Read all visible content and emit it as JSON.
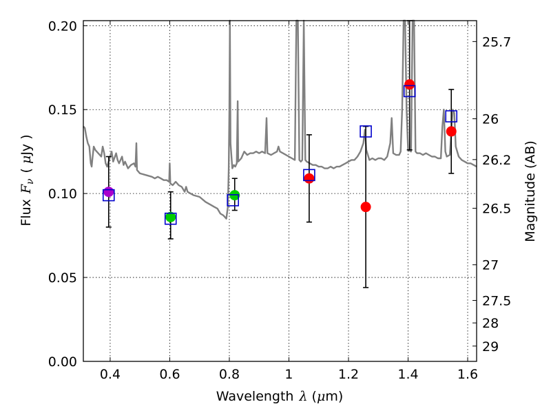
{
  "chart_data": {
    "type": "scatter",
    "title": "",
    "xlabel": "Wavelength",
    "xlabel_symbol": "λ",
    "xlabel_unit_prefix": "(",
    "xlabel_unit_mu": "μ",
    "xlabel_unit_suffix": "m)",
    "ylabel": "Flux",
    "ylabel_symbol": "F",
    "ylabel_sub": "ν",
    "ylabel_unit_prefix": "(",
    "ylabel_unit_mu": "μ",
    "ylabel_unit_suffix": "Jy )",
    "y2label": "Magnitude (AB)",
    "xlim": [
      0.31,
      1.63
    ],
    "ylim": [
      0.0,
      0.203
    ],
    "grid": true,
    "xticks": [
      {
        "v": 0.4,
        "label": "0.4"
      },
      {
        "v": 0.6,
        "label": "0.6"
      },
      {
        "v": 0.8,
        "label": "0.8"
      },
      {
        "v": 1.0,
        "label": "1"
      },
      {
        "v": 1.2,
        "label": "1.2"
      },
      {
        "v": 1.4,
        "label": "1.4"
      },
      {
        "v": 1.6,
        "label": "1.6"
      }
    ],
    "yticks": [
      {
        "v": 0.0,
        "label": "0.00"
      },
      {
        "v": 0.05,
        "label": "0.05"
      },
      {
        "v": 0.1,
        "label": "0.10"
      },
      {
        "v": 0.15,
        "label": "0.15"
      },
      {
        "v": 0.2,
        "label": "0.20"
      }
    ],
    "y2ticks": [
      {
        "mag": 25.7,
        "label": "25.7"
      },
      {
        "mag": 26,
        "label": "26"
      },
      {
        "mag": 26.2,
        "label": "26.2"
      },
      {
        "mag": 26.5,
        "label": "26.5"
      },
      {
        "mag": 27,
        "label": "27"
      },
      {
        "mag": 27.5,
        "label": "27.5"
      },
      {
        "mag": 28,
        "label": "28"
      },
      {
        "mag": 29,
        "label": "29"
      }
    ],
    "model_spectrum": {
      "name": "model",
      "color": "#808080",
      "points": [
        [
          0.31,
          0.14
        ],
        [
          0.315,
          0.139
        ],
        [
          0.32,
          0.134
        ],
        [
          0.325,
          0.13
        ],
        [
          0.33,
          0.128
        ],
        [
          0.335,
          0.118
        ],
        [
          0.338,
          0.116
        ],
        [
          0.34,
          0.12
        ],
        [
          0.345,
          0.128
        ],
        [
          0.35,
          0.126
        ],
        [
          0.36,
          0.124
        ],
        [
          0.37,
          0.122
        ],
        [
          0.375,
          0.128
        ],
        [
          0.38,
          0.124
        ],
        [
          0.385,
          0.118
        ],
        [
          0.39,
          0.116
        ],
        [
          0.4,
          0.122
        ],
        [
          0.405,
          0.125
        ],
        [
          0.41,
          0.119
        ],
        [
          0.42,
          0.124
        ],
        [
          0.425,
          0.12
        ],
        [
          0.43,
          0.118
        ],
        [
          0.44,
          0.122
        ],
        [
          0.445,
          0.117
        ],
        [
          0.45,
          0.119
        ],
        [
          0.46,
          0.115
        ],
        [
          0.47,
          0.117
        ],
        [
          0.48,
          0.118
        ],
        [
          0.485,
          0.116
        ],
        [
          0.488,
          0.13
        ],
        [
          0.49,
          0.114
        ],
        [
          0.5,
          0.112
        ],
        [
          0.52,
          0.111
        ],
        [
          0.54,
          0.11
        ],
        [
          0.55,
          0.109
        ],
        [
          0.56,
          0.11
        ],
        [
          0.57,
          0.109
        ],
        [
          0.58,
          0.108
        ],
        [
          0.59,
          0.108
        ],
        [
          0.598,
          0.107
        ],
        [
          0.6,
          0.118
        ],
        [
          0.602,
          0.106
        ],
        [
          0.61,
          0.105
        ],
        [
          0.62,
          0.107
        ],
        [
          0.625,
          0.106
        ],
        [
          0.63,
          0.105
        ],
        [
          0.64,
          0.104
        ],
        [
          0.65,
          0.101
        ],
        [
          0.655,
          0.104
        ],
        [
          0.66,
          0.101
        ],
        [
          0.67,
          0.1
        ],
        [
          0.68,
          0.099
        ],
        [
          0.7,
          0.098
        ],
        [
          0.72,
          0.095
        ],
        [
          0.74,
          0.093
        ],
        [
          0.75,
          0.092
        ],
        [
          0.76,
          0.091
        ],
        [
          0.77,
          0.088
        ],
        [
          0.78,
          0.087
        ],
        [
          0.785,
          0.086
        ],
        [
          0.79,
          0.085
        ],
        [
          0.795,
          0.092
        ],
        [
          0.798,
          0.115
        ],
        [
          0.8,
          0.15
        ],
        [
          0.802,
          0.203
        ],
        [
          0.804,
          0.13
        ],
        [
          0.81,
          0.115
        ],
        [
          0.815,
          0.117
        ],
        [
          0.82,
          0.116
        ],
        [
          0.825,
          0.118
        ],
        [
          0.828,
          0.155
        ],
        [
          0.83,
          0.119
        ],
        [
          0.84,
          0.121
        ],
        [
          0.85,
          0.125
        ],
        [
          0.86,
          0.123
        ],
        [
          0.87,
          0.124
        ],
        [
          0.88,
          0.124
        ],
        [
          0.89,
          0.125
        ],
        [
          0.9,
          0.124
        ],
        [
          0.91,
          0.125
        ],
        [
          0.92,
          0.124
        ],
        [
          0.925,
          0.145
        ],
        [
          0.928,
          0.124
        ],
        [
          0.94,
          0.123
        ],
        [
          0.95,
          0.124
        ],
        [
          0.96,
          0.125
        ],
        [
          0.965,
          0.128
        ],
        [
          0.97,
          0.125
        ],
        [
          0.98,
          0.124
        ],
        [
          0.99,
          0.123
        ],
        [
          1.0,
          0.122
        ],
        [
          1.01,
          0.121
        ],
        [
          1.02,
          0.12
        ],
        [
          1.025,
          0.203
        ],
        [
          1.03,
          0.203
        ],
        [
          1.035,
          0.12
        ],
        [
          1.04,
          0.119
        ],
        [
          1.045,
          0.12
        ],
        [
          1.05,
          0.203
        ],
        [
          1.055,
          0.12
        ],
        [
          1.06,
          0.119
        ],
        [
          1.07,
          0.118
        ],
        [
          1.08,
          0.117
        ],
        [
          1.09,
          0.117
        ],
        [
          1.1,
          0.116
        ],
        [
          1.11,
          0.116
        ],
        [
          1.12,
          0.115
        ],
        [
          1.13,
          0.115
        ],
        [
          1.14,
          0.116
        ],
        [
          1.15,
          0.115
        ],
        [
          1.16,
          0.116
        ],
        [
          1.17,
          0.116
        ],
        [
          1.18,
          0.117
        ],
        [
          1.19,
          0.118
        ],
        [
          1.2,
          0.119
        ],
        [
          1.21,
          0.12
        ],
        [
          1.22,
          0.12
        ],
        [
          1.23,
          0.122
        ],
        [
          1.24,
          0.125
        ],
        [
          1.25,
          0.13
        ],
        [
          1.255,
          0.138
        ],
        [
          1.26,
          0.126
        ],
        [
          1.27,
          0.12
        ],
        [
          1.28,
          0.121
        ],
        [
          1.29,
          0.12
        ],
        [
          1.3,
          0.121
        ],
        [
          1.31,
          0.121
        ],
        [
          1.32,
          0.12
        ],
        [
          1.33,
          0.122
        ],
        [
          1.34,
          0.13
        ],
        [
          1.345,
          0.145
        ],
        [
          1.35,
          0.124
        ],
        [
          1.36,
          0.123
        ],
        [
          1.37,
          0.123
        ],
        [
          1.375,
          0.125
        ],
        [
          1.38,
          0.15
        ],
        [
          1.385,
          0.203
        ],
        [
          1.39,
          0.203
        ],
        [
          1.395,
          0.15
        ],
        [
          1.4,
          0.126
        ],
        [
          1.41,
          0.125
        ],
        [
          1.415,
          0.203
        ],
        [
          1.42,
          0.203
        ],
        [
          1.425,
          0.125
        ],
        [
          1.43,
          0.124
        ],
        [
          1.44,
          0.124
        ],
        [
          1.45,
          0.123
        ],
        [
          1.46,
          0.124
        ],
        [
          1.47,
          0.123
        ],
        [
          1.48,
          0.122
        ],
        [
          1.49,
          0.122
        ],
        [
          1.5,
          0.121
        ],
        [
          1.51,
          0.121
        ],
        [
          1.515,
          0.14
        ],
        [
          1.52,
          0.15
        ],
        [
          1.525,
          0.125
        ],
        [
          1.53,
          0.122
        ],
        [
          1.54,
          0.123
        ],
        [
          1.55,
          0.15
        ],
        [
          1.555,
          0.148
        ],
        [
          1.56,
          0.128
        ],
        [
          1.57,
          0.122
        ],
        [
          1.58,
          0.12
        ],
        [
          1.59,
          0.119
        ],
        [
          1.6,
          0.118
        ],
        [
          1.61,
          0.118
        ],
        [
          1.62,
          0.117
        ],
        [
          1.63,
          0.116
        ]
      ]
    },
    "observations": [
      {
        "x": 0.395,
        "y": 0.101,
        "err_low": 0.08,
        "err_high": 0.122,
        "color": "#aa00cc"
      },
      {
        "x": 0.603,
        "y": 0.086,
        "err_low": 0.073,
        "err_high": 0.101,
        "color": "#00cc00"
      },
      {
        "x": 0.818,
        "y": 0.099,
        "err_low": 0.09,
        "err_high": 0.109,
        "color": "#00cc00"
      },
      {
        "x": 1.068,
        "y": 0.109,
        "err_low": 0.083,
        "err_high": 0.135,
        "color": "#ff0000"
      },
      {
        "x": 1.258,
        "y": 0.092,
        "err_low": 0.044,
        "err_high": 0.14,
        "color": "#ff0000"
      },
      {
        "x": 1.405,
        "y": 0.165,
        "err_low": 0.126,
        "err_high": 0.203,
        "color": "#ff0000"
      },
      {
        "x": 1.545,
        "y": 0.137,
        "err_low": 0.112,
        "err_high": 0.162,
        "color": "#ff0000"
      }
    ],
    "model_photometry": [
      {
        "x": 0.395,
        "y": 0.099
      },
      {
        "x": 0.603,
        "y": 0.085
      },
      {
        "x": 0.812,
        "y": 0.096
      },
      {
        "x": 1.068,
        "y": 0.111
      },
      {
        "x": 1.258,
        "y": 0.137
      },
      {
        "x": 1.405,
        "y": 0.161
      },
      {
        "x": 1.545,
        "y": 0.146
      }
    ],
    "colors": {
      "errorbar": "#000000",
      "model_box": "#0000cc",
      "grid": "#000000",
      "axis": "#000000"
    }
  }
}
